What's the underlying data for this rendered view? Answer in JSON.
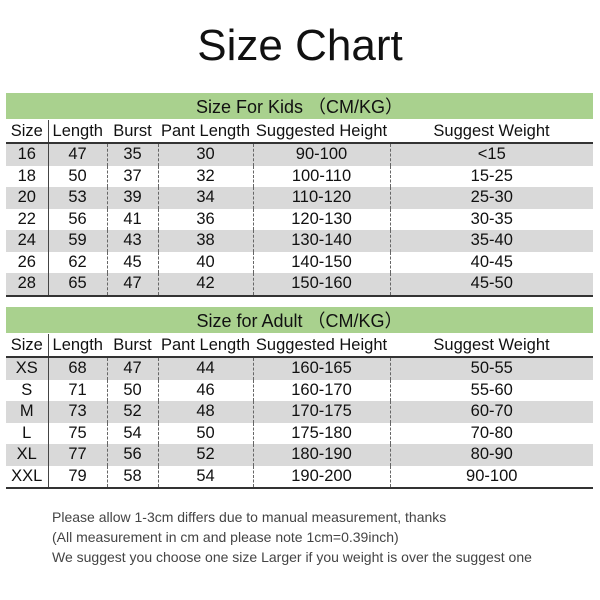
{
  "title": "Size Chart",
  "columns": [
    "Size",
    "Length",
    "Burst",
    "Pant Length",
    "Suggested Height",
    "Suggest Weight"
  ],
  "colors": {
    "header_band": "#a9d18e",
    "stripe": "#d9d9d9"
  },
  "kids": {
    "caption": "Size For Kids （CM/KG）",
    "rows": [
      [
        "16",
        "47",
        "35",
        "30",
        "90-100",
        "<15"
      ],
      [
        "18",
        "50",
        "37",
        "32",
        "100-110",
        "15-25"
      ],
      [
        "20",
        "53",
        "39",
        "34",
        "110-120",
        "25-30"
      ],
      [
        "22",
        "56",
        "41",
        "36",
        "120-130",
        "30-35"
      ],
      [
        "24",
        "59",
        "43",
        "38",
        "130-140",
        "35-40"
      ],
      [
        "26",
        "62",
        "45",
        "40",
        "140-150",
        "40-45"
      ],
      [
        "28",
        "65",
        "47",
        "42",
        "150-160",
        "45-50"
      ]
    ]
  },
  "adult": {
    "caption": "Size for Adult （CM/KG）",
    "rows": [
      [
        "XS",
        "68",
        "47",
        "44",
        "160-165",
        "50-55"
      ],
      [
        "S",
        "71",
        "50",
        "46",
        "160-170",
        "55-60"
      ],
      [
        "M",
        "73",
        "52",
        "48",
        "170-175",
        "60-70"
      ],
      [
        "L",
        "75",
        "54",
        "50",
        "175-180",
        "70-80"
      ],
      [
        "XL",
        "77",
        "56",
        "52",
        "180-190",
        "80-90"
      ],
      [
        "XXL",
        "79",
        "58",
        "54",
        "190-200",
        "90-100"
      ]
    ]
  },
  "notes": [
    "Please allow 1-3cm differs due to manual measurement, thanks",
    "(All measurement in cm and please note 1cm=0.39inch)",
    "We suggest you choose one size Larger if you weight is over the suggest one"
  ]
}
